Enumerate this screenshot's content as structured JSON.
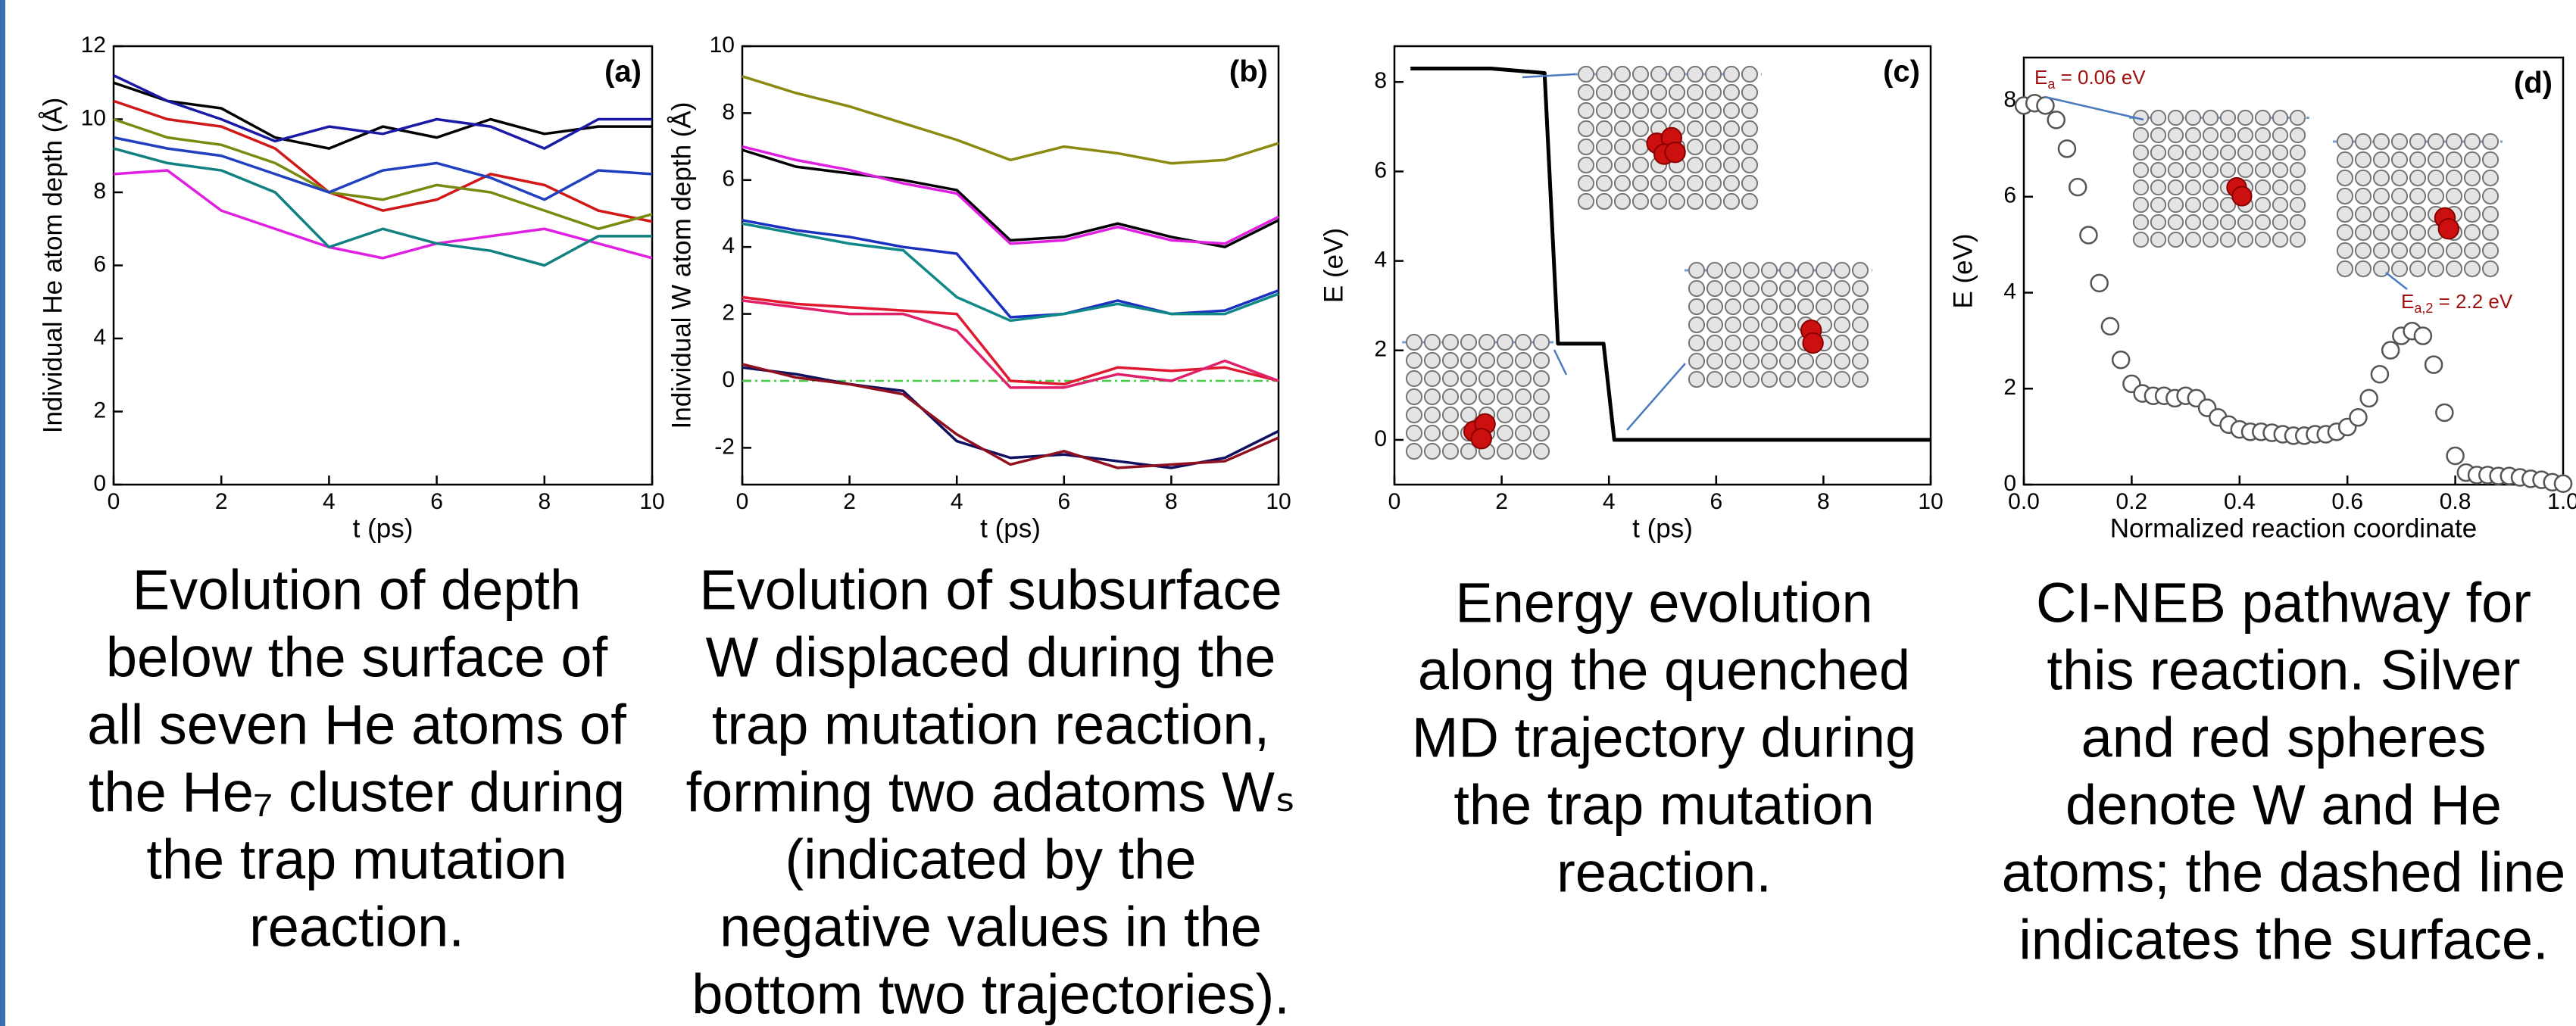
{
  "chart_data": [
    {
      "type": "line",
      "panel_label": "(a)",
      "x_label": "t (ps)",
      "y_label": "Individual He atom depth (Å)",
      "x": [
        0,
        1,
        2,
        3,
        4,
        5,
        6,
        7,
        8,
        9,
        10
      ],
      "series": [
        {
          "color": "#000000",
          "values": [
            11,
            10.5,
            10.3,
            9.5,
            9.2,
            9.8,
            9.5,
            10,
            9.6,
            9.8,
            9.8
          ]
        },
        {
          "color": "#1a1aa6",
          "values": [
            11.2,
            10.5,
            10,
            9.4,
            9.8,
            9.6,
            10,
            9.8,
            9.2,
            10,
            10
          ]
        },
        {
          "color": "#d01818",
          "values": [
            10.5,
            10,
            9.8,
            9.2,
            8,
            7.5,
            7.8,
            8.5,
            8.2,
            7.5,
            7.2
          ]
        },
        {
          "color": "#7a8a10",
          "values": [
            10,
            9.5,
            9.3,
            8.8,
            8,
            7.8,
            8.2,
            8,
            7.5,
            7,
            7.4
          ]
        },
        {
          "color": "#e020e0",
          "values": [
            8.5,
            8.6,
            7.5,
            7,
            6.5,
            6.2,
            6.6,
            6.8,
            7,
            6.6,
            6.2
          ]
        },
        {
          "color": "#2040c0",
          "values": [
            9.5,
            9.2,
            9,
            8.5,
            8,
            8.6,
            8.8,
            8.4,
            7.8,
            8.6,
            8.5
          ]
        },
        {
          "color": "#108080",
          "values": [
            9.2,
            8.8,
            8.6,
            8,
            6.5,
            7,
            6.6,
            6.4,
            6,
            6.8,
            6.8
          ]
        }
      ],
      "xlim": [
        0,
        10
      ],
      "xticks": [
        0,
        2,
        4,
        6,
        8,
        10
      ],
      "ylim": [
        0,
        12
      ],
      "yticks": [
        0,
        2,
        4,
        6,
        8,
        10,
        12
      ],
      "caption": [
        "Evolution of depth",
        "below the surface of",
        "all seven He atoms of",
        "the He₇ cluster during",
        "the trap mutation",
        "reaction."
      ]
    },
    {
      "type": "line",
      "panel_label": "(b)",
      "x_label": "t (ps)",
      "y_label": "Individual W atom depth (Å)",
      "x": [
        0,
        1,
        2,
        3,
        4,
        5,
        6,
        7,
        8,
        9,
        10
      ],
      "series": [
        {
          "color": "#8a8a10",
          "values": [
            9.1,
            8.6,
            8.2,
            7.7,
            7.2,
            6.6,
            7,
            6.8,
            6.5,
            6.6,
            7.1
          ]
        },
        {
          "color": "#000000",
          "values": [
            6.9,
            6.4,
            6.2,
            6,
            5.7,
            4.2,
            4.3,
            4.7,
            4.3,
            4,
            4.8
          ]
        },
        {
          "color": "#e020e0",
          "values": [
            7,
            6.6,
            6.3,
            5.9,
            5.6,
            4.1,
            4.2,
            4.6,
            4.2,
            4.1,
            4.9
          ]
        },
        {
          "color": "#1a30c0",
          "values": [
            4.8,
            4.5,
            4.3,
            4,
            3.8,
            1.9,
            2,
            2.4,
            2,
            2.1,
            2.7
          ]
        },
        {
          "color": "#108888",
          "values": [
            4.7,
            4.4,
            4.1,
            3.9,
            2.5,
            1.8,
            2,
            2.3,
            2,
            2,
            2.6
          ]
        },
        {
          "color": "#e01830",
          "values": [
            2.5,
            2.3,
            2.2,
            2.1,
            2,
            0,
            -0.1,
            0.4,
            0.3,
            0.4,
            0
          ]
        },
        {
          "color": "#e0206a",
          "values": [
            2.4,
            2.2,
            2,
            2,
            1.5,
            -0.2,
            -0.2,
            0.2,
            0,
            0.6,
            0
          ]
        },
        {
          "color": "#101060",
          "values": [
            0.4,
            0.2,
            -0.1,
            -0.3,
            -1.8,
            -2.3,
            -2.2,
            -2.4,
            -2.6,
            -2.3,
            -1.5
          ]
        },
        {
          "color": "#901020",
          "values": [
            0.5,
            0.1,
            -0.1,
            -0.4,
            -1.6,
            -2.5,
            -2.1,
            -2.6,
            -2.5,
            -2.4,
            -1.7
          ]
        }
      ],
      "reference_line": {
        "value": 0,
        "color": "#44cc44"
      },
      "xlim": [
        0,
        10
      ],
      "xticks": [
        0,
        2,
        4,
        6,
        8,
        10
      ],
      "ylim": [
        -3.1,
        10
      ],
      "yticks": [
        -2,
        0,
        2,
        4,
        6,
        8,
        10
      ],
      "caption": [
        "Evolution of subsurface",
        "W displaced during the",
        "trap mutation reaction,",
        "forming two adatoms Wₛ",
        "(indicated by the",
        "negative values in the",
        "bottom two trajectories)."
      ]
    },
    {
      "type": "line",
      "panel_label": "(c)",
      "x_label": "t (ps)",
      "y_label": "E (eV)",
      "x": [
        0.3,
        1.8,
        2.8,
        3.05,
        3.9,
        4.1,
        10
      ],
      "series": [
        {
          "color": "#000000",
          "values": [
            8.3,
            8.3,
            8.2,
            2.15,
            2.15,
            0,
            0
          ]
        }
      ],
      "xlim": [
        0,
        10
      ],
      "xticks": [
        0,
        2,
        4,
        6,
        8,
        10
      ],
      "ylim": [
        -1,
        8.8
      ],
      "yticks": [
        0,
        2,
        4,
        6,
        8
      ],
      "caption": [
        "Energy evolution",
        "along the quenched",
        "MD trajectory during",
        "the trap mutation",
        "reaction."
      ]
    },
    {
      "type": "scatter",
      "panel_label": "(d)",
      "x_label": "Normalized reaction coordinate",
      "y_label": "E (eV)",
      "x": [
        0,
        0.02,
        0.04,
        0.06,
        0.08,
        0.1,
        0.12,
        0.14,
        0.16,
        0.18,
        0.2,
        0.22,
        0.24,
        0.26,
        0.28,
        0.3,
        0.32,
        0.34,
        0.36,
        0.38,
        0.4,
        0.42,
        0.44,
        0.46,
        0.48,
        0.5,
        0.52,
        0.54,
        0.56,
        0.58,
        0.6,
        0.62,
        0.64,
        0.66,
        0.68,
        0.7,
        0.72,
        0.74,
        0.76,
        0.78,
        0.8,
        0.82,
        0.84,
        0.86,
        0.88,
        0.9,
        0.92,
        0.94,
        0.96,
        0.98,
        1.0
      ],
      "values": [
        7.9,
        7.95,
        7.9,
        7.6,
        7,
        6.2,
        5.2,
        4.2,
        3.3,
        2.6,
        2.1,
        1.9,
        1.85,
        1.85,
        1.8,
        1.85,
        1.8,
        1.6,
        1.4,
        1.25,
        1.15,
        1.1,
        1.1,
        1.08,
        1.05,
        1.02,
        1.02,
        1.05,
        1.05,
        1.1,
        1.2,
        1.4,
        1.8,
        2.3,
        2.8,
        3.1,
        3.2,
        3.1,
        2.5,
        1.5,
        0.6,
        0.25,
        0.2,
        0.2,
        0.18,
        0.18,
        0.15,
        0.12,
        0.1,
        0.05,
        0.02
      ],
      "color": "#555555",
      "annotations": [
        {
          "base": "E",
          "sub": "a",
          "rest": " = 0.06 eV"
        },
        {
          "base": "E",
          "sub": "a,2",
          "rest": " = 2.2 eV"
        }
      ],
      "xlim": [
        0,
        1
      ],
      "xticks": [
        {
          "value": 0,
          "label": "0.0"
        },
        0.2,
        0.4,
        0.6,
        0.8,
        {
          "value": 1,
          "label": "1.0"
        }
      ],
      "ylim": [
        0,
        8.9
      ],
      "yticks": [
        0,
        2,
        4,
        6,
        8
      ],
      "caption": [
        "CI-NEB pathway for",
        "this reaction. Silver",
        "and red spheres",
        "denote W and He",
        "atoms; the dashed line",
        "indicates the surface."
      ]
    }
  ]
}
